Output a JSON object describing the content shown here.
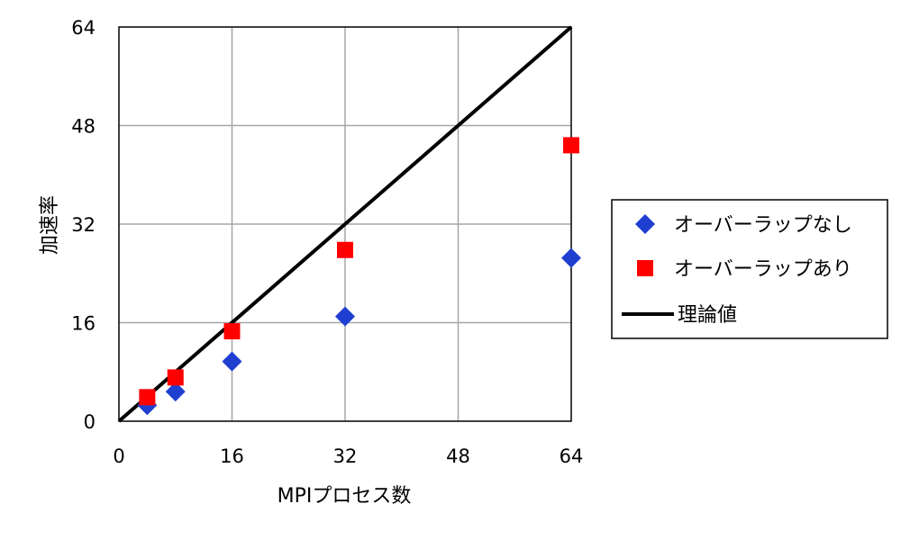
{
  "chart_data": {
    "type": "scatter",
    "xlabel": "MPIプロセス数",
    "ylabel": "加速率",
    "xlim": [
      0,
      64
    ],
    "ylim": [
      0,
      64
    ],
    "xticks": [
      "0",
      "16",
      "32",
      "48",
      "64"
    ],
    "yticks": [
      "0",
      "16",
      "32",
      "48",
      "64"
    ],
    "grid": true,
    "legend_position": "right",
    "series": [
      {
        "name": "オーバーラップなし",
        "marker": "diamond",
        "color": "#1f3fd1",
        "x": [
          4,
          8,
          16,
          32,
          64
        ],
        "y": [
          2.6,
          4.8,
          9.7,
          17.0,
          26.5
        ]
      },
      {
        "name": "オーバーラップあり",
        "marker": "square",
        "color": "#ff0000",
        "x": [
          4,
          8,
          16,
          32,
          64
        ],
        "y": [
          3.9,
          7.1,
          14.6,
          27.8,
          44.8
        ]
      },
      {
        "name": "理論値",
        "marker": "line",
        "color": "#000000",
        "x": [
          0,
          64
        ],
        "y": [
          0,
          64
        ]
      }
    ]
  }
}
